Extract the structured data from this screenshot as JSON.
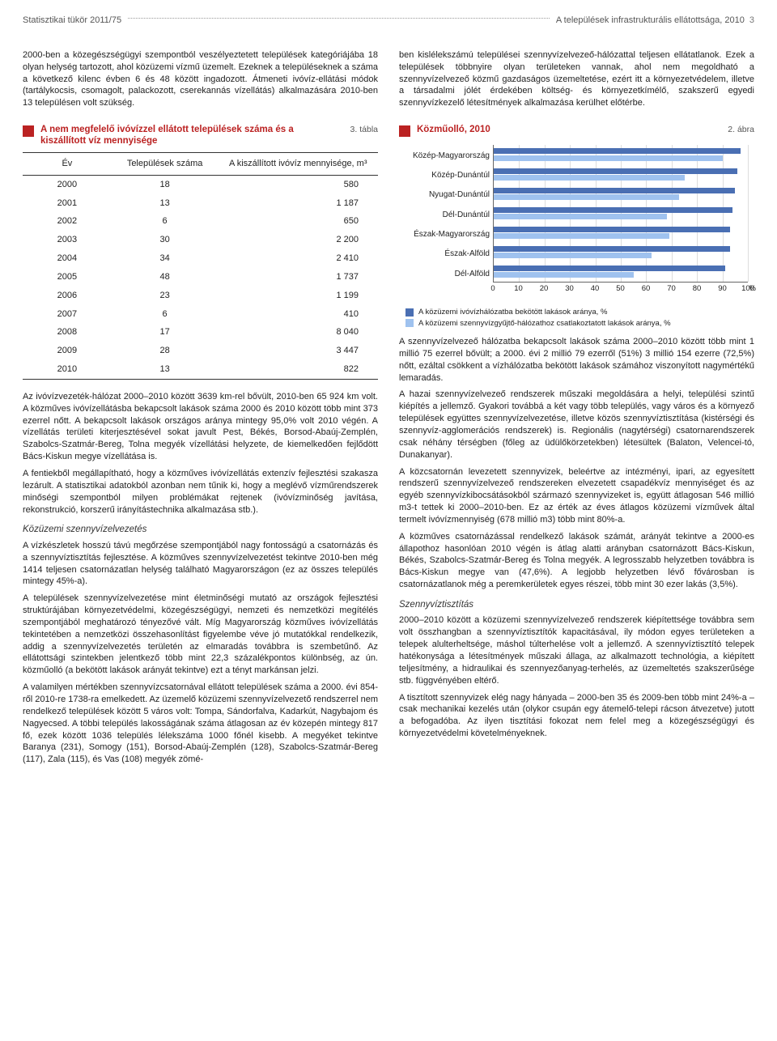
{
  "header": {
    "left": "Statisztikai tükör 2011/75",
    "right": "A települések infrastrukturális ellátottsága, 2010",
    "page": "3"
  },
  "left_col": {
    "para1": "2000-ben a közegészségügyi szempontból veszélyeztetett települések kategóriájába 18 olyan helység tartozott, ahol közüzemi vízmű üzemelt. Ezeknek a településeknek a száma a következő kilenc évben 6 és 48 között ingadozott. Átmeneti ivóvíz-ellátási módok (tartálykocsis, csomagolt, palackozott, cserekannás vízellátás) alkalmazására 2010-ben 13 településen volt szükség.",
    "table": {
      "label": "3. tábla",
      "title": "A nem megfelelő ivóvízzel ellátott települések száma és a kiszállított víz mennyisége",
      "col1": "Év",
      "col2": "Települések száma",
      "col3": "A kiszállított ivóvíz mennyisége, m³",
      "rows": [
        {
          "year": "2000",
          "n": "18",
          "q": "580"
        },
        {
          "year": "2001",
          "n": "13",
          "q": "1 187"
        },
        {
          "year": "2002",
          "n": "6",
          "q": "650"
        },
        {
          "year": "2003",
          "n": "30",
          "q": "2 200"
        },
        {
          "year": "2004",
          "n": "34",
          "q": "2 410"
        },
        {
          "year": "2005",
          "n": "48",
          "q": "1 737"
        },
        {
          "year": "2006",
          "n": "23",
          "q": "1 199"
        },
        {
          "year": "2007",
          "n": "6",
          "q": "410"
        },
        {
          "year": "2008",
          "n": "17",
          "q": "8 040"
        },
        {
          "year": "2009",
          "n": "28",
          "q": "3 447"
        },
        {
          "year": "2010",
          "n": "13",
          "q": "822"
        }
      ]
    },
    "para2": "Az ivóvízvezeték-hálózat 2000–2010 között 3639 km-rel bővült, 2010-ben 65 924 km volt. A közműves ivóvízellátásba bekapcsolt lakások száma 2000 és 2010 között több mint 373 ezerrel nőtt. A bekapcsolt lakások országos aránya mintegy 95,0% volt 2010 végén. A vízellátás területi kiterjesztésével sokat javult Pest, Békés, Borsod-Abaúj-Zemplén, Szabolcs-Szatmár-Bereg, Tolna megyék vízellátási helyzete, de kiemelkedően fejlődött Bács-Kiskun megye vízellátása is.",
    "para3": "A fentiekből megállapítható, hogy a közműves ivóvízellátás extenzív fejlesztési szakasza lezárult. A statisztikai adatokból azonban nem tűnik ki, hogy a meglévő vízműrendszerek minőségi szempontból milyen problémákat rejtenek (ivóvízminőség javítása, rekonstrukció, korszerű irányítástechnika alkalmazása stb.).",
    "sub1": "Közüzemi szennyvízelvezetés",
    "para4": "A vízkészletek hosszú távú megőrzése szempontjából nagy fontosságú a csatornázás és a szennyvíztisztítás fejlesztése. A közműves szennyvízelvezetést tekintve 2010-ben még 1414 teljesen csatornázatlan helység található Magyarországon (ez az összes település mintegy 45%-a).",
    "para5": "A települések szennyvízelvezetése mint életminőségi mutató az országok fejlesztési struktúrájában környezetvédelmi, közegészségügyi, nemzeti és nemzetközi megítélés szempontjából meghatározó tényezővé vált. Míg Magyarország közműves ivóvízellátás tekintetében a nemzetközi összehasonlítást figyelembe véve jó mutatókkal rendelkezik, addig a szennyvízelvezetés területén az elmaradás továbbra is szembetűnő. Az ellátottsági szintekben jelentkező több mint 22,3 százalékpontos különbség, az ún. közműolló (a bekötött lakások arányát tekintve) ezt a tényt markánsan jelzi.",
    "para6": "A valamilyen mértékben szennyvízcsatornával ellátott települések száma a 2000. évi 854-ről 2010-re 1738-ra emelkedett. Az üzemelő közüzemi szennyvízelvezető rendszerrel nem rendelkező települések között 5 város volt: Tompa, Sándorfalva, Kadarkút, Nagybajom és Nagyecsed. A többi település lakosságának száma átlagosan az év közepén mintegy 817 fő, ezek között 1036 település lélekszáma 1000 főnél kisebb. A megyéket tekintve Baranya (231), Somogy (151), Borsod-Abaúj-Zemplén (128), Szabolcs-Szatmár-Bereg (117), Zala (115), és Vas (108) megyék zömé-"
  },
  "right_col": {
    "para1": "ben kislélekszámú települései szennyvízelvezeő-hálózattal teljesen ellátatlanok. Ezek a települések többnyire olyan területeken vannak, ahol nem megoldható a szennyvízelvezeő közmű gazdaságos üzemeltetése, ezért itt a környezetvédelem, illetve a társadalmi jólét érdekében költség- és környezetkímélő, szakszerű egyedi szennyvízkezelő létesítmények alkalmazása kerülhet előtérbe.",
    "chart": {
      "label": "2. ábra",
      "title": "Közműolló, 2010",
      "categories": [
        "Közép-Magyarország",
        "Közép-Dunántúl",
        "Nyugat-Dunántúl",
        "Dél-Dunántúl",
        "Észak-Magyarország",
        "Észak-Alföld",
        "Dél-Alföld"
      ],
      "seriesA": [
        97,
        96,
        95,
        94,
        93,
        93,
        91
      ],
      "seriesB": [
        90,
        75,
        73,
        68,
        69,
        62,
        55
      ],
      "colorA": "#4a6fb3",
      "colorB": "#9fc2ef",
      "xmax": 100,
      "xtick_step": 10,
      "xticks": [
        "0",
        "10",
        "20",
        "30",
        "40",
        "50",
        "60",
        "70",
        "80",
        "90",
        "100"
      ],
      "legendA": "A közüzemi ivóvízhálózatba bekötött lakások aránya, %",
      "legendB": "A közüzemi szennyvízgyűjtő-hálózathoz csatlakoztatott lakások aránya, %",
      "pct": "%"
    },
    "para2": "A szennyvízelvezeő hálózatba bekapcsolt lakások száma 2000–2010 között több mint 1 millió 75 ezerrel bővült; a 2000. évi 2 millió 79 ezerről (51%) 3 millió 154 ezerre (72,5%) nőtt, ezáltal csökkent a vízhálózatba bekötött lakások számához viszonyított nagymértékű lemaradás.",
    "para3": "A hazai szennyvízelvezeő rendszerek műszaki megoldására a helyi, települési szintű kiépítés a jellemző. Gyakori továbbá a két vagy több település, vagy város és a környező települések együttes szennyvízelvezetése, illetve közös szennyvíztisztítása (kistérségi és szennyvíz-agglomerációs rendszerek) is. Regionális (nagytérségi) csatornarendszerek csak néhány térségben (főleg az üdülőkörzetekben) létesültek (Balaton, Velencei-tó, Dunakanyar).",
    "para4": "A közcsatornán levezetett szennyvizek, beleértve az intézményi, ipari, az egyesített rendszerű szennyvízelvezeő rendszereken elvezetett csapadékvíz mennyiséget és az egyéb szennyvízkibocsátásokból származó szennyvizeket is, együtt átlagosan 546 millió m3-t tettek ki 2000–2010-ben. Ez az érték az éves átlagos közüzemi vízművek által termelt ivóvízmennyiség (678 millió m3) több mint 80%-a.",
    "para5": "A közműves csatornázással rendelkező lakások számát, arányát tekintve a 2000-es állapothoz hasonlóan 2010 végén is átlag alatti arányban csatornázott Bács-Kiskun, Békés, Szabolcs-Szatmár-Bereg és Tolna megyék. A legrosszabb helyzetben továbbra is Bács-Kiskun megye van (47,6%). A legjobb helyzetben lévő fővárosban is csatornázatlanok még a peremkerületek egyes részei, több mint 30 ezer lakás (3,5%).",
    "sub1": "Szennyvíztisztítás",
    "para6": "2000–2010 között a közüzemi szennyvízelvezeő rendszerek kiépítettsége továbbra sem volt összhangban a szennyvíztisztítók kapacitásával, ily módon egyes területeken a telepek alulterheltsége, máshol túlterhelése volt a jellemző. A szennyvíztisztító telepek hatékonysága a létesítmények műszaki állaga, az alkalmazott technológia, a kiépített teljesítmény, a hidraulikai és szennyezőanyag-terhelés, az üzemeltetés szakszerűsége stb. függvényében eltérő.",
    "para7": "A tisztított szennyvizek elég nagy hányada – 2000-ben 35 és 2009-ben több mint 24%-a – csak mechanikai kezelés után (olykor csupán egy átemelő-telepi rácson átvezetve) jutott a befogadóba. Az ilyen tisztítási fokozat nem felel meg a közegészségügyi és környezetvédelmi követelményeknek."
  }
}
